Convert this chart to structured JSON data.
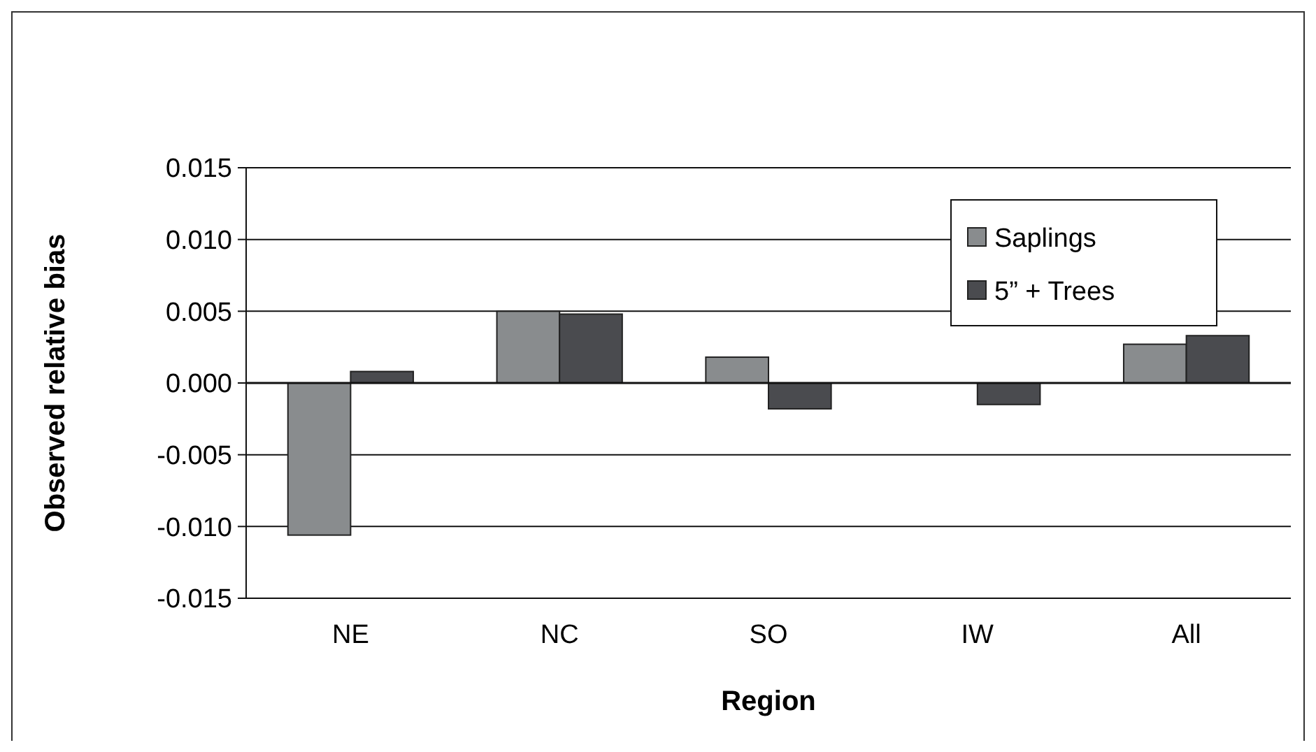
{
  "chart_data": {
    "type": "bar",
    "xlabel": "Region",
    "ylabel": "Observed relative bias",
    "categories": [
      "NE",
      "NC",
      "SO",
      "IW",
      "All"
    ],
    "series": [
      {
        "name": "Saplings",
        "color": "#898c8e",
        "values": [
          -0.0106,
          0.005,
          0.0018,
          0,
          0.0027
        ]
      },
      {
        "name": "5” + Trees",
        "color": "#4a4b4f",
        "values": [
          0.0008,
          0.0048,
          -0.0018,
          -0.0015,
          0.0033
        ]
      }
    ],
    "ylim": [
      -0.015,
      0.015
    ],
    "yticks": [
      {
        "value": -0.015,
        "label": "-0.015"
      },
      {
        "value": -0.01,
        "label": "-0.010"
      },
      {
        "value": -0.005,
        "label": "-0.005"
      },
      {
        "value": 0,
        "label": "0.000"
      },
      {
        "value": 0.005,
        "label": "0.005"
      },
      {
        "value": 0.01,
        "label": "0.010"
      },
      {
        "value": 0.015,
        "label": "0.015"
      }
    ],
    "grid": "y",
    "legend": "top right"
  }
}
